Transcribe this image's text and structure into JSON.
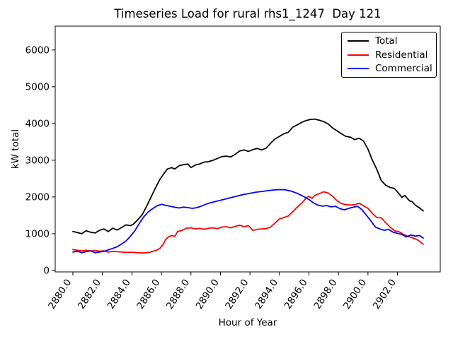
{
  "window": {
    "background": "#ffffff"
  },
  "chart_data": {
    "type": "line",
    "title": "Timeseries Load for rural rhs1_1247  Day 121",
    "xlabel": "Hour of Year",
    "ylabel": "kW total",
    "xlim": [
      2878.8,
      2904.9
    ],
    "ylim": [
      -40,
      6650
    ],
    "grid": false,
    "legend_position": "upper right",
    "xticks": [
      2880,
      2882,
      2884,
      2886,
      2888,
      2890,
      2892,
      2894,
      2896,
      2898,
      2900,
      2902
    ],
    "xtick_labels": [
      "2880.0",
      "2882.0",
      "2884.0",
      "2886.0",
      "2888.0",
      "2890.0",
      "2892.0",
      "2894.0",
      "2896.0",
      "2898.0",
      "2900.0",
      "2902.0"
    ],
    "xtick_rotation_deg": 57,
    "yticks": [
      0,
      1000,
      2000,
      3000,
      4000,
      5000,
      6000
    ],
    "ytick_labels": [
      "0",
      "1000",
      "2000",
      "3000",
      "4000",
      "5000",
      "6000"
    ],
    "series": [
      {
        "name": "Total",
        "color": "#000000",
        "points": [
          [
            2880,
            1060
          ],
          [
            2880.3,
            1030
          ],
          [
            2880.6,
            1000
          ],
          [
            2880.9,
            1080
          ],
          [
            2881.2,
            1040
          ],
          [
            2881.5,
            1020
          ],
          [
            2881.8,
            1090
          ],
          [
            2882.1,
            1130
          ],
          [
            2882.4,
            1060
          ],
          [
            2882.7,
            1150
          ],
          [
            2883,
            1100
          ],
          [
            2883.3,
            1170
          ],
          [
            2883.6,
            1240
          ],
          [
            2883.9,
            1220
          ],
          [
            2884.1,
            1260
          ],
          [
            2884.4,
            1380
          ],
          [
            2884.7,
            1520
          ],
          [
            2885,
            1750
          ],
          [
            2885.3,
            2000
          ],
          [
            2885.6,
            2250
          ],
          [
            2885.9,
            2480
          ],
          [
            2886.1,
            2600
          ],
          [
            2886.4,
            2760
          ],
          [
            2886.7,
            2800
          ],
          [
            2886.9,
            2760
          ],
          [
            2887.2,
            2850
          ],
          [
            2887.5,
            2880
          ],
          [
            2887.8,
            2895
          ],
          [
            2888,
            2800
          ],
          [
            2888.3,
            2870
          ],
          [
            2888.6,
            2900
          ],
          [
            2888.9,
            2950
          ],
          [
            2889.2,
            2960
          ],
          [
            2889.5,
            3000
          ],
          [
            2889.8,
            3050
          ],
          [
            2890.1,
            3100
          ],
          [
            2890.4,
            3110
          ],
          [
            2890.7,
            3090
          ],
          [
            2891,
            3160
          ],
          [
            2891.3,
            3250
          ],
          [
            2891.6,
            3280
          ],
          [
            2891.9,
            3240
          ],
          [
            2892.2,
            3290
          ],
          [
            2892.5,
            3320
          ],
          [
            2892.8,
            3280
          ],
          [
            2893.1,
            3330
          ],
          [
            2893.4,
            3460
          ],
          [
            2893.7,
            3580
          ],
          [
            2894,
            3650
          ],
          [
            2894.3,
            3720
          ],
          [
            2894.6,
            3760
          ],
          [
            2894.9,
            3900
          ],
          [
            2895.2,
            3960
          ],
          [
            2895.5,
            4030
          ],
          [
            2895.8,
            4080
          ],
          [
            2896.1,
            4110
          ],
          [
            2896.4,
            4120
          ],
          [
            2896.7,
            4090
          ],
          [
            2897,
            4050
          ],
          [
            2897.3,
            3990
          ],
          [
            2897.6,
            3880
          ],
          [
            2897.9,
            3800
          ],
          [
            2898.2,
            3720
          ],
          [
            2898.5,
            3650
          ],
          [
            2898.8,
            3630
          ],
          [
            2899.1,
            3560
          ],
          [
            2899.4,
            3600
          ],
          [
            2899.7,
            3520
          ],
          [
            2900,
            3300
          ],
          [
            2900.3,
            3000
          ],
          [
            2900.6,
            2750
          ],
          [
            2900.9,
            2450
          ],
          [
            2901.2,
            2320
          ],
          [
            2901.5,
            2260
          ],
          [
            2901.8,
            2230
          ],
          [
            2902.1,
            2090
          ],
          [
            2902.3,
            1990
          ],
          [
            2902.5,
            2040
          ],
          [
            2902.8,
            1900
          ],
          [
            2903,
            1870
          ],
          [
            2903.2,
            1780
          ],
          [
            2903.5,
            1700
          ],
          [
            2903.75,
            1620
          ]
        ]
      },
      {
        "name": "Residential",
        "color": "#ff0000",
        "points": [
          [
            2880,
            570
          ],
          [
            2880.3,
            550
          ],
          [
            2880.6,
            535
          ],
          [
            2880.9,
            548
          ],
          [
            2881.2,
            530
          ],
          [
            2881.5,
            542
          ],
          [
            2881.8,
            525
          ],
          [
            2882.1,
            535
          ],
          [
            2882.4,
            500
          ],
          [
            2882.7,
            520
          ],
          [
            2883,
            510
          ],
          [
            2883.3,
            500
          ],
          [
            2883.6,
            490
          ],
          [
            2884,
            496
          ],
          [
            2884.4,
            482
          ],
          [
            2884.8,
            475
          ],
          [
            2885.2,
            495
          ],
          [
            2885.6,
            540
          ],
          [
            2885.9,
            600
          ],
          [
            2886.1,
            700
          ],
          [
            2886.3,
            850
          ],
          [
            2886.5,
            920
          ],
          [
            2886.7,
            950
          ],
          [
            2886.9,
            925
          ],
          [
            2887.1,
            1060
          ],
          [
            2887.4,
            1090
          ],
          [
            2887.7,
            1150
          ],
          [
            2888,
            1160
          ],
          [
            2888.3,
            1130
          ],
          [
            2888.6,
            1145
          ],
          [
            2888.9,
            1120
          ],
          [
            2889.2,
            1150
          ],
          [
            2889.5,
            1160
          ],
          [
            2889.8,
            1140
          ],
          [
            2890.1,
            1180
          ],
          [
            2890.4,
            1190
          ],
          [
            2890.7,
            1160
          ],
          [
            2891,
            1200
          ],
          [
            2891.3,
            1230
          ],
          [
            2891.6,
            1190
          ],
          [
            2891.9,
            1220
          ],
          [
            2892.2,
            1090
          ],
          [
            2892.5,
            1120
          ],
          [
            2892.8,
            1130
          ],
          [
            2893.1,
            1140
          ],
          [
            2893.4,
            1180
          ],
          [
            2893.7,
            1290
          ],
          [
            2894,
            1400
          ],
          [
            2894.3,
            1440
          ],
          [
            2894.6,
            1480
          ],
          [
            2894.9,
            1600
          ],
          [
            2895.2,
            1720
          ],
          [
            2895.5,
            1830
          ],
          [
            2895.8,
            1960
          ],
          [
            2896,
            2020
          ],
          [
            2896.2,
            1960
          ],
          [
            2896.4,
            2040
          ],
          [
            2896.7,
            2090
          ],
          [
            2897,
            2140
          ],
          [
            2897.3,
            2110
          ],
          [
            2897.6,
            2020
          ],
          [
            2897.9,
            1900
          ],
          [
            2898.2,
            1820
          ],
          [
            2898.5,
            1790
          ],
          [
            2898.8,
            1780
          ],
          [
            2899.1,
            1790
          ],
          [
            2899.4,
            1830
          ],
          [
            2899.7,
            1760
          ],
          [
            2900,
            1690
          ],
          [
            2900.3,
            1550
          ],
          [
            2900.6,
            1440
          ],
          [
            2900.9,
            1430
          ],
          [
            2901.2,
            1300
          ],
          [
            2901.5,
            1180
          ],
          [
            2901.8,
            1080
          ],
          [
            2902.1,
            1055
          ],
          [
            2902.4,
            985
          ],
          [
            2902.7,
            930
          ],
          [
            2903,
            890
          ],
          [
            2903.3,
            845
          ],
          [
            2903.5,
            790
          ],
          [
            2903.75,
            715
          ]
        ]
      },
      {
        "name": "Commercial",
        "color": "#0000ff",
        "points": [
          [
            2880,
            500
          ],
          [
            2880.3,
            522
          ],
          [
            2880.6,
            482
          ],
          [
            2880.9,
            512
          ],
          [
            2881.2,
            532
          ],
          [
            2881.5,
            482
          ],
          [
            2881.8,
            502
          ],
          [
            2882.1,
            522
          ],
          [
            2882.4,
            560
          ],
          [
            2882.7,
            600
          ],
          [
            2883,
            645
          ],
          [
            2883.3,
            720
          ],
          [
            2883.6,
            800
          ],
          [
            2883.9,
            930
          ],
          [
            2884.2,
            1080
          ],
          [
            2884.5,
            1280
          ],
          [
            2884.8,
            1460
          ],
          [
            2885.1,
            1590
          ],
          [
            2885.4,
            1680
          ],
          [
            2885.7,
            1760
          ],
          [
            2886,
            1800
          ],
          [
            2886.3,
            1770
          ],
          [
            2886.6,
            1745
          ],
          [
            2886.9,
            1720
          ],
          [
            2887.2,
            1700
          ],
          [
            2887.5,
            1725
          ],
          [
            2887.8,
            1710
          ],
          [
            2888.1,
            1690
          ],
          [
            2888.4,
            1710
          ],
          [
            2888.7,
            1750
          ],
          [
            2889,
            1800
          ],
          [
            2889.3,
            1840
          ],
          [
            2889.6,
            1870
          ],
          [
            2890,
            1910
          ],
          [
            2890.4,
            1950
          ],
          [
            2890.8,
            1990
          ],
          [
            2891.2,
            2030
          ],
          [
            2891.6,
            2070
          ],
          [
            2892,
            2100
          ],
          [
            2892.4,
            2130
          ],
          [
            2892.8,
            2150
          ],
          [
            2893.2,
            2170
          ],
          [
            2893.6,
            2190
          ],
          [
            2894,
            2200
          ],
          [
            2894.4,
            2195
          ],
          [
            2894.8,
            2160
          ],
          [
            2895.2,
            2100
          ],
          [
            2895.6,
            2020
          ],
          [
            2896,
            1930
          ],
          [
            2896.3,
            1840
          ],
          [
            2896.6,
            1780
          ],
          [
            2896.9,
            1750
          ],
          [
            2897.2,
            1765
          ],
          [
            2897.5,
            1730
          ],
          [
            2897.8,
            1745
          ],
          [
            2898.1,
            1680
          ],
          [
            2898.4,
            1650
          ],
          [
            2898.7,
            1690
          ],
          [
            2899,
            1720
          ],
          [
            2899.3,
            1745
          ],
          [
            2899.6,
            1650
          ],
          [
            2899.9,
            1500
          ],
          [
            2900.2,
            1350
          ],
          [
            2900.5,
            1180
          ],
          [
            2900.8,
            1130
          ],
          [
            2901.1,
            1090
          ],
          [
            2901.4,
            1120
          ],
          [
            2901.7,
            1040
          ],
          [
            2902,
            1010
          ],
          [
            2902.3,
            980
          ],
          [
            2902.6,
            910
          ],
          [
            2902.9,
            965
          ],
          [
            2903.2,
            935
          ],
          [
            2903.5,
            950
          ],
          [
            2903.75,
            880
          ]
        ]
      }
    ]
  }
}
